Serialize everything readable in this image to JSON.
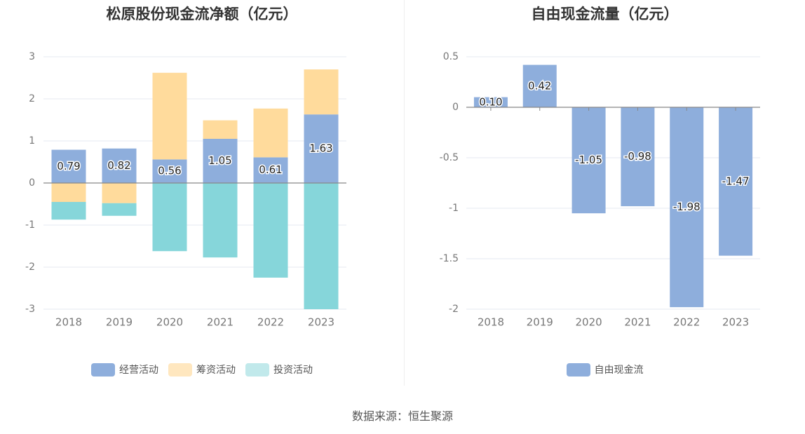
{
  "footer": {
    "source": "数据来源：恒生聚源"
  },
  "colors": {
    "operating": "#8eaedc",
    "financing": "#ffdb9c",
    "investing": "#86d6da",
    "fcf": "#8eaedc"
  },
  "chart_data": [
    {
      "type": "bar",
      "stacked": true,
      "title": "松原股份现金流净额（亿元）",
      "categories": [
        "2018",
        "2019",
        "2020",
        "2021",
        "2022",
        "2023"
      ],
      "ylim": [
        -3,
        3
      ],
      "yticks": [
        "3",
        "2",
        "1",
        "0",
        "-1",
        "-2",
        "-3"
      ],
      "grid": true,
      "legend_position": "bottom",
      "series": [
        {
          "name": "经营活动",
          "values": [
            0.79,
            0.82,
            0.56,
            1.05,
            0.61,
            1.63
          ],
          "labels": [
            "0.79",
            "0.82",
            "0.56",
            "1.05",
            "0.61",
            "1.63"
          ]
        },
        {
          "name": "筹资活动",
          "values": [
            -0.45,
            -0.48,
            2.06,
            0.44,
            1.16,
            1.07
          ]
        },
        {
          "name": "投资活动",
          "values": [
            -0.42,
            -0.3,
            -1.62,
            -1.77,
            -2.25,
            -3.0
          ]
        }
      ]
    },
    {
      "type": "bar",
      "title": "自由现金流量（亿元）",
      "categories": [
        "2018",
        "2019",
        "2020",
        "2021",
        "2022",
        "2023"
      ],
      "ylim": [
        -2,
        0.5
      ],
      "yticks": [
        "0.5",
        "0",
        "-0.5",
        "-1",
        "-1.5",
        "-2"
      ],
      "grid": true,
      "legend_position": "bottom",
      "series": [
        {
          "name": "自由现金流",
          "values": [
            0.1,
            0.42,
            -1.05,
            -0.98,
            -1.98,
            -1.47
          ],
          "labels": [
            "0.10",
            "0.42",
            "-1.05",
            "-0.98",
            "-1.98",
            "-1.47"
          ]
        }
      ]
    }
  ]
}
